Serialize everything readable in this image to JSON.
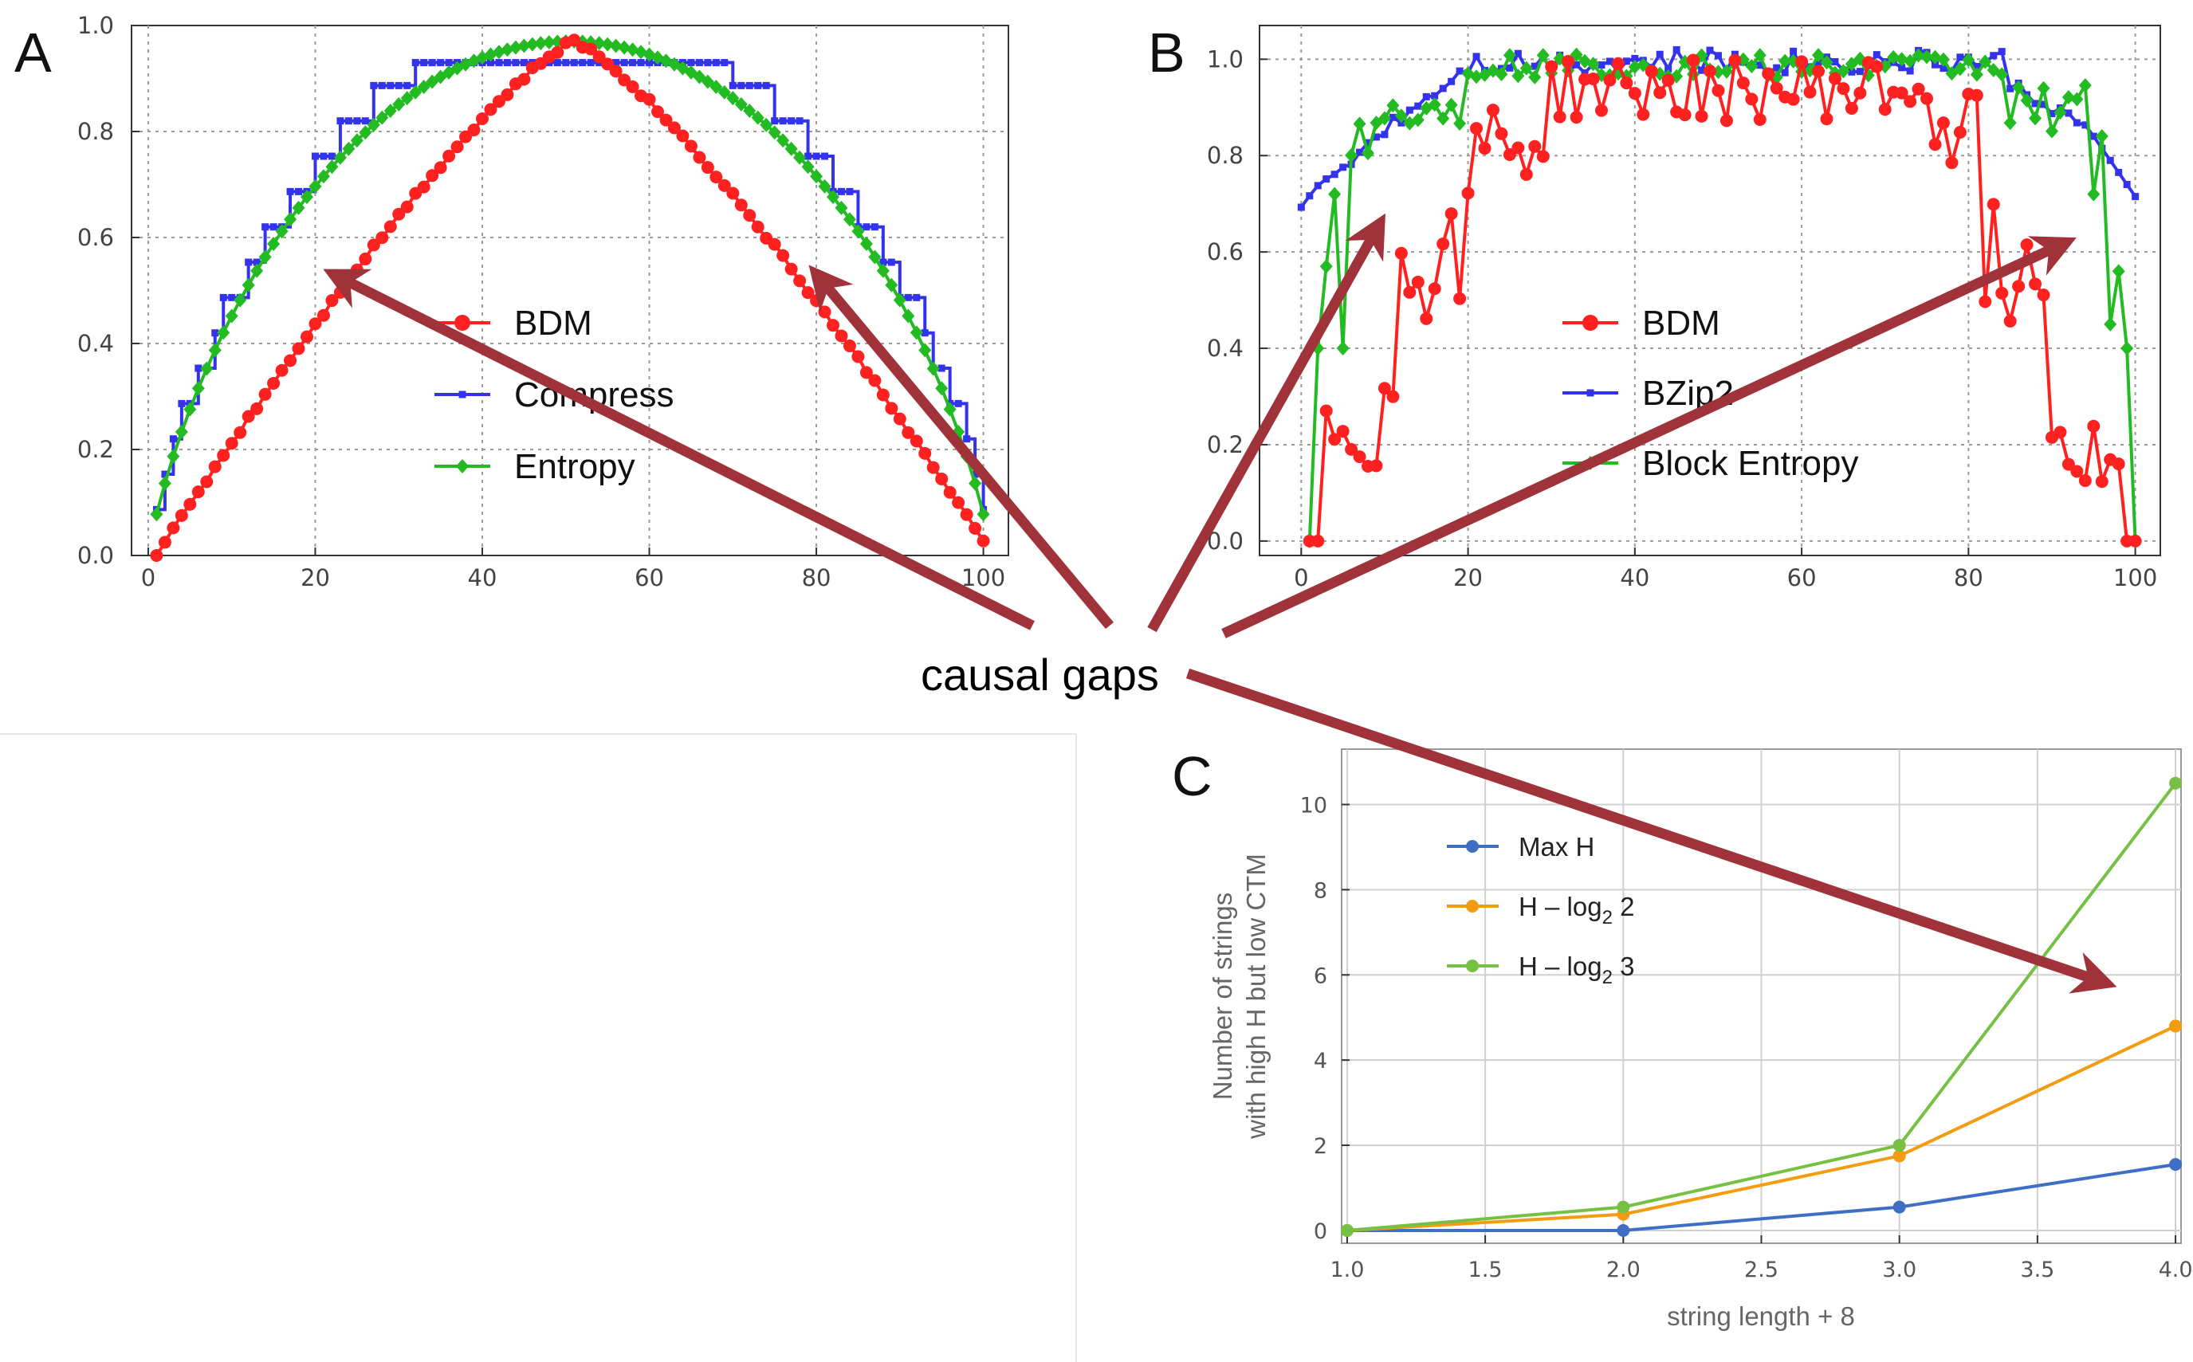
{
  "annotation": {
    "text": "causal gaps"
  },
  "chart_data": [
    {
      "id": "A",
      "type": "line",
      "panel_label": "A",
      "x_ticks": [
        "0",
        "20",
        "40",
        "60",
        "80",
        "100"
      ],
      "y_ticks": [
        "0.0",
        "0.2",
        "0.4",
        "0.6",
        "0.8",
        "1.0"
      ],
      "xlim": [
        -2,
        103
      ],
      "ylim": [
        0,
        1
      ],
      "grid": true,
      "legend_position": "center",
      "series": [
        {
          "name": "BDM",
          "color": "#ff2020",
          "marker": "circle",
          "shape": "bdm_parabola",
          "peak": 0.97
        },
        {
          "name": "Compress",
          "color": "#3333ee",
          "marker": "square",
          "shape": "stepped_arch",
          "peak": 0.93
        },
        {
          "name": "Entropy",
          "color": "#22bb22",
          "marker": "diamond",
          "shape": "entropy_arch",
          "peak": 0.97
        }
      ]
    },
    {
      "id": "B",
      "type": "line",
      "panel_label": "B",
      "x_ticks": [
        "0",
        "20",
        "40",
        "60",
        "80",
        "100"
      ],
      "y_ticks": [
        "0.0",
        "0.2",
        "0.4",
        "0.6",
        "0.8",
        "1.0"
      ],
      "xlim": [
        -5,
        103
      ],
      "ylim": [
        -0.03,
        1.07
      ],
      "grid": true,
      "legend_position": "center",
      "series": [
        {
          "name": "BDM",
          "color": "#ff2020",
          "marker": "circle",
          "shape": "bdm_noisy"
        },
        {
          "name": "BZip2",
          "color": "#3333ee",
          "marker": "square",
          "shape": "bzip_plateau"
        },
        {
          "name": "Block Entropy",
          "color": "#22bb22",
          "marker": "diamond",
          "shape": "block_entropy"
        }
      ]
    },
    {
      "id": "C",
      "type": "line",
      "panel_label": "C",
      "xlabel": "string length + 8",
      "ylabel_line1": "Number of strings",
      "ylabel_line2": "with high H but low CTM",
      "x_ticks": [
        "1.0",
        "1.5",
        "2.0",
        "2.5",
        "3.0",
        "3.5",
        "4.0"
      ],
      "y_ticks": [
        "0",
        "2",
        "4",
        "6",
        "8",
        "10"
      ],
      "xlim": [
        0.98,
        4.02
      ],
      "ylim": [
        -0.3,
        11.3
      ],
      "grid": true,
      "legend_position": "top-left",
      "series": [
        {
          "name": "Max H",
          "name_main": "Max H",
          "name_sub": "",
          "name_tail": "",
          "color": "#3f6fc4",
          "x": [
            1,
            2,
            3,
            4
          ],
          "values": [
            0,
            0,
            0.55,
            1.55
          ]
        },
        {
          "name": "H – log2 2",
          "name_main": "H – log",
          "name_sub": "2",
          "name_tail": " 2",
          "color": "#f39c12",
          "x": [
            1,
            2,
            3,
            4
          ],
          "values": [
            0,
            0.38,
            1.75,
            4.8
          ]
        },
        {
          "name": "H – log2 3",
          "name_main": "H – log",
          "name_sub": "2",
          "name_tail": " 3",
          "color": "#76c043",
          "x": [
            1,
            2,
            3,
            4
          ],
          "values": [
            0,
            0.55,
            2.0,
            10.5
          ]
        }
      ]
    }
  ]
}
